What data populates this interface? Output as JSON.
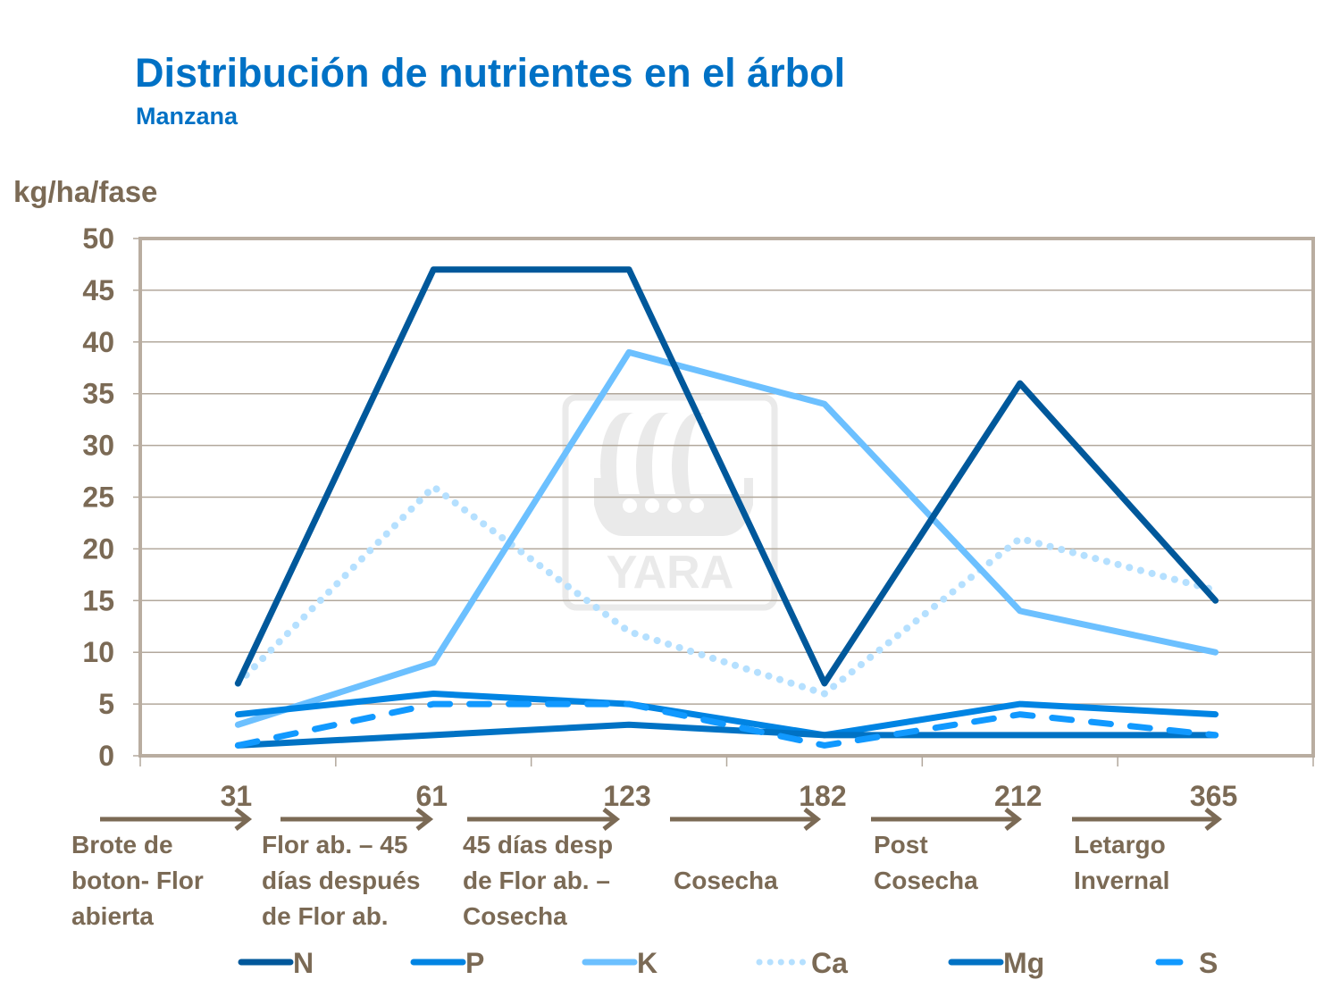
{
  "title": "Distribución de nutrientes en el árbol",
  "subtitle": "Manzana",
  "watermark": "YARA",
  "phases": [
    "Brote de\nboton- Flor\nabierta",
    "Flor ab. – 45\ndías después\nde Flor ab.",
    "45 días desp\nde Flor ab. –\nCosecha",
    "Cosecha",
    "Post\nCosecha",
    "Letargo\nInvernal"
  ],
  "chart_data": {
    "type": "line",
    "title": "Distribución de nutrientes en el árbol",
    "subtitle": "Manzana",
    "xlabel": "",
    "ylabel": "kg/ha/fase",
    "categories": [
      "31",
      "61",
      "123",
      "182",
      "212",
      "365"
    ],
    "ylim": [
      0,
      50
    ],
    "yticks": [
      0,
      5,
      10,
      15,
      20,
      25,
      30,
      35,
      40,
      45,
      50
    ],
    "grid": true,
    "legend": "bottom",
    "series": [
      {
        "name": "N",
        "color": "#00589b",
        "style": "solid",
        "values": [
          7,
          47,
          47,
          7,
          36,
          15
        ]
      },
      {
        "name": "P",
        "color": "#0084e3",
        "style": "solid",
        "values": [
          4,
          6,
          5,
          2,
          5,
          4
        ]
      },
      {
        "name": "K",
        "color": "#6cc0ff",
        "style": "solid",
        "values": [
          3,
          9,
          39,
          34,
          14,
          10
        ]
      },
      {
        "name": "Ca",
        "color": "#b5e0ff",
        "style": "dotted",
        "values": [
          7,
          26,
          12,
          6,
          21,
          16
        ]
      },
      {
        "name": "Mg",
        "color": "#0072c4",
        "style": "solid",
        "values": [
          1,
          2,
          3,
          2,
          2,
          2
        ]
      },
      {
        "name": "S",
        "color": "#1199ff",
        "style": "dashed",
        "values": [
          1,
          5,
          5,
          1,
          4,
          2
        ]
      }
    ]
  }
}
